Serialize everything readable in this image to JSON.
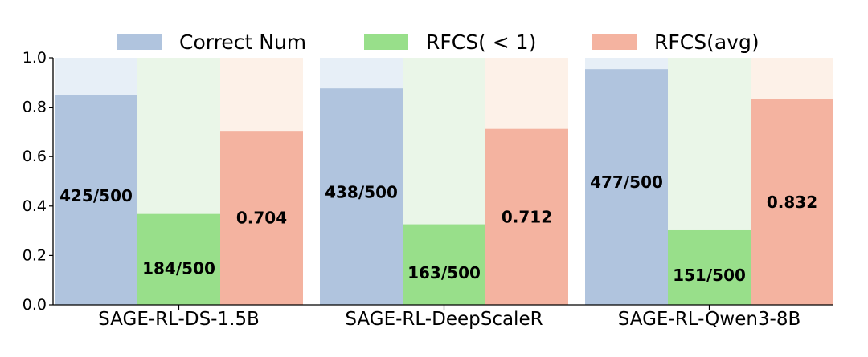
{
  "chart_data": {
    "type": "bar",
    "categories": [
      "SAGE-RL-DS-1.5B",
      "SAGE-RL-DeepScaleR",
      "SAGE-RL-Qwen3-8B"
    ],
    "series": [
      {
        "name": "Correct Num",
        "values": [
          0.85,
          0.876,
          0.954
        ],
        "labels": [
          "425/500",
          "438/500",
          "477/500"
        ],
        "color": "#b0c4de",
        "bg_color": "#e7eff7"
      },
      {
        "name": "RFCS( < 1)",
        "values": [
          0.368,
          0.326,
          0.302
        ],
        "labels": [
          "184/500",
          "163/500",
          "151/500"
        ],
        "color": "#98df8a",
        "bg_color": "#eaf6e8"
      },
      {
        "name": "RFCS(avg)",
        "values": [
          0.704,
          0.712,
          0.832
        ],
        "labels": [
          "0.704",
          "0.712",
          "0.832"
        ],
        "color": "#f4b3a0",
        "bg_color": "#fdf1e8"
      }
    ],
    "ylim": [
      0,
      1.0
    ],
    "yticks": [
      "0.0",
      "0.2",
      "0.4",
      "0.6",
      "0.8",
      "1.0"
    ],
    "xlabel": "",
    "ylabel": "",
    "legend": "top"
  }
}
